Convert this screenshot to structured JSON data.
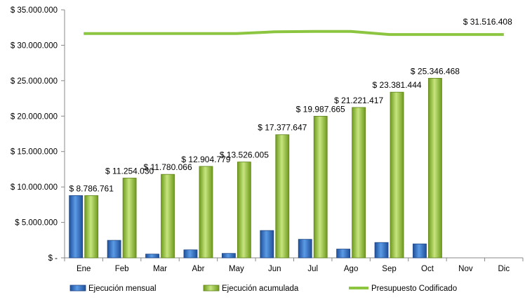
{
  "chart_data": {
    "type": "bar",
    "categories": [
      "Ene",
      "Feb",
      "Mar",
      "Abr",
      "May",
      "Jun",
      "Jul",
      "Ago",
      "Sep",
      "Oct",
      "Nov",
      "Dic"
    ],
    "series": [
      {
        "name": "Ejecución mensual",
        "kind": "bar",
        "color": "#3b78c8",
        "values": [
          8786761,
          2467269,
          526036,
          1124713,
          621226,
          3851642,
          2610018,
          1233752,
          2160027,
          1965024,
          null,
          null
        ]
      },
      {
        "name": "Ejecución acumulada",
        "kind": "bar",
        "color": "#a4cc4a",
        "values": [
          8786761,
          11254030,
          11780066,
          12904779,
          13526005,
          17377647,
          19987665,
          21221417,
          23381444,
          25346468,
          null,
          null
        ],
        "labels": [
          "$ 8.786.761",
          "$ 11.254.030",
          "$ 11.780.066",
          "$ 12.904.779",
          "$ 13.526.005",
          "$ 17.377.647",
          "$ 19.987.665",
          "$ 21.221.417",
          "$ 23.381.444",
          "$ 25.346.468",
          "",
          ""
        ]
      },
      {
        "name": "Presupuesto Codificado",
        "kind": "line",
        "color": "#8cc540",
        "values": [
          31650000,
          31650000,
          31650000,
          31650000,
          31650000,
          31900000,
          31950000,
          31950000,
          31516408,
          31516408,
          31516408,
          31516408
        ],
        "labels": [
          "",
          "",
          "",
          "",
          "",
          "",
          "",
          "",
          "",
          "",
          "",
          "$ 31.516.408"
        ]
      }
    ],
    "ylim": [
      0,
      35000000
    ],
    "yticks": [
      {
        "value": 0,
        "label": "$ -"
      },
      {
        "value": 5000000,
        "label": "$ 5.000.000"
      },
      {
        "value": 10000000,
        "label": "$ 10.000.000"
      },
      {
        "value": 15000000,
        "label": "$ 15.000.000"
      },
      {
        "value": 20000000,
        "label": "$ 20.000.000"
      },
      {
        "value": 25000000,
        "label": "$ 25.000.000"
      },
      {
        "value": 30000000,
        "label": "$ 30.000.000"
      },
      {
        "value": 35000000,
        "label": "$ 35.000.000"
      }
    ],
    "grid": false,
    "legend_position": "bottom"
  }
}
